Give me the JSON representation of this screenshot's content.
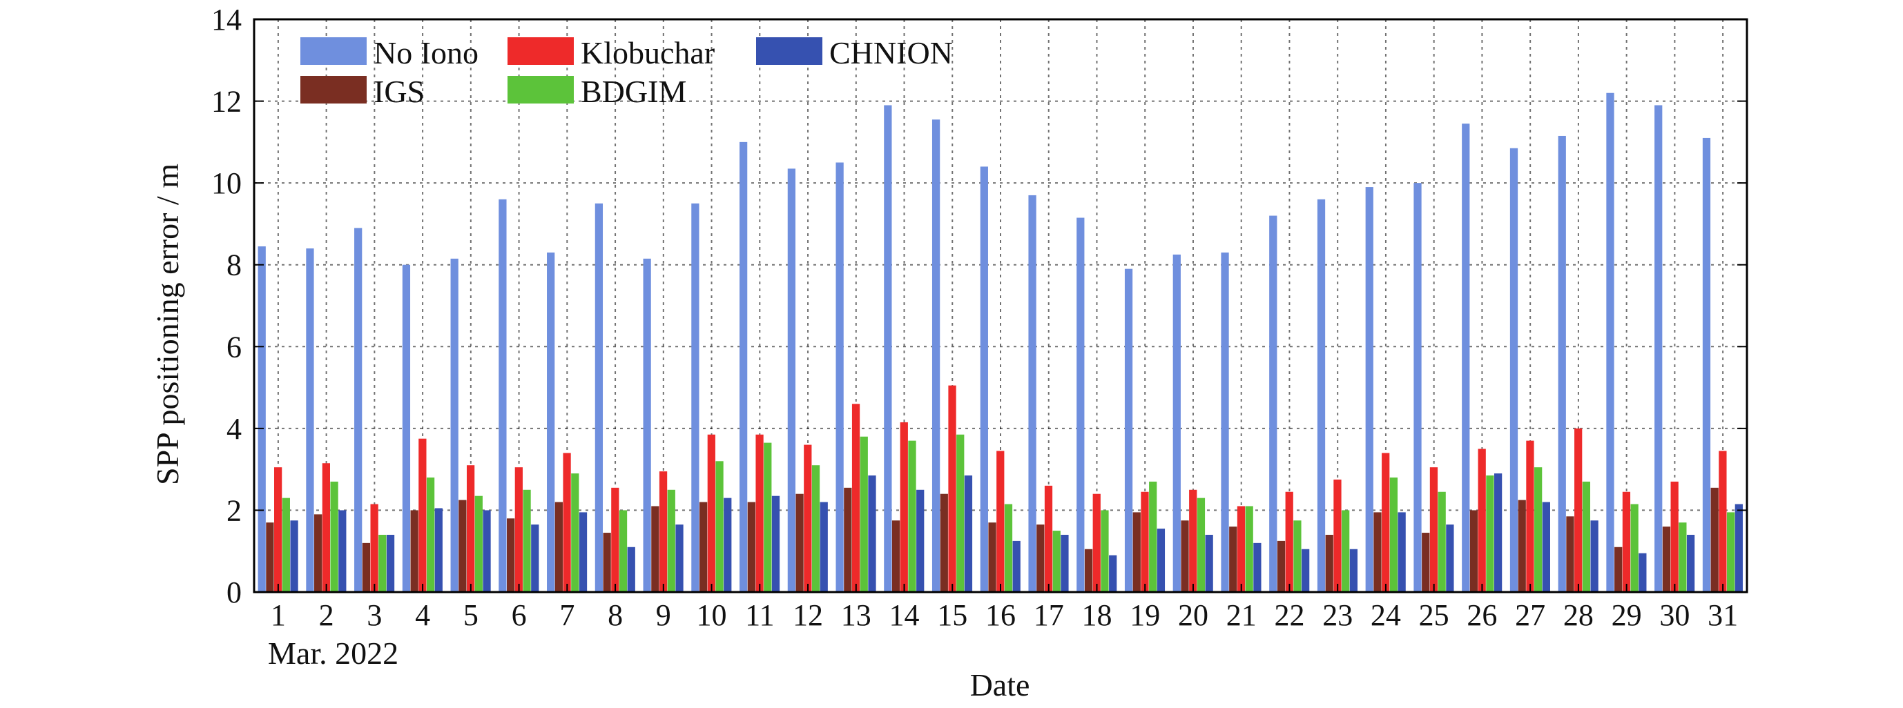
{
  "chart_data": {
    "type": "bar",
    "xlabel": "Date",
    "ylabel": "SPP positioning error / m",
    "x_sublabel": "Mar. 2022",
    "ylim": [
      0,
      14
    ],
    "yticks": [
      0,
      2,
      4,
      6,
      8,
      10,
      12,
      14
    ],
    "grid": true,
    "legend_position": "top-left",
    "categories": [
      "1",
      "2",
      "3",
      "4",
      "5",
      "6",
      "7",
      "8",
      "9",
      "10",
      "11",
      "12",
      "13",
      "14",
      "15",
      "16",
      "17",
      "18",
      "19",
      "20",
      "21",
      "22",
      "23",
      "24",
      "25",
      "26",
      "27",
      "28",
      "29",
      "30",
      "31"
    ],
    "series": [
      {
        "name": "No Iono",
        "color": "#6f8fde",
        "values": [
          8.45,
          8.4,
          8.9,
          8.0,
          8.15,
          9.6,
          8.3,
          9.5,
          8.15,
          9.5,
          11.0,
          10.35,
          10.5,
          11.9,
          11.55,
          10.4,
          9.7,
          9.15,
          7.9,
          8.25,
          8.3,
          9.2,
          9.6,
          9.9,
          10.0,
          11.45,
          10.85,
          11.15,
          12.2,
          11.9,
          11.1
        ]
      },
      {
        "name": "IGS",
        "color": "#7a2e22",
        "values": [
          1.7,
          1.9,
          1.2,
          2.0,
          2.25,
          1.8,
          2.2,
          1.45,
          2.1,
          2.2,
          2.2,
          2.4,
          2.55,
          1.75,
          2.4,
          1.7,
          1.65,
          1.05,
          1.95,
          1.75,
          1.6,
          1.25,
          1.4,
          1.95,
          1.45,
          2.0,
          2.25,
          1.85,
          1.1,
          1.6,
          2.55
        ]
      },
      {
        "name": "Klobuchar",
        "color": "#ee2a2a",
        "values": [
          3.05,
          3.15,
          2.15,
          3.75,
          3.1,
          3.05,
          3.4,
          2.55,
          2.95,
          3.85,
          3.85,
          3.6,
          4.6,
          4.15,
          5.05,
          3.45,
          2.6,
          2.4,
          2.45,
          2.5,
          2.1,
          2.45,
          2.75,
          3.4,
          3.05,
          3.5,
          3.7,
          4.0,
          2.45,
          2.7,
          3.45
        ]
      },
      {
        "name": "BDGIM",
        "color": "#5cc33a",
        "values": [
          2.3,
          2.7,
          1.4,
          2.8,
          2.35,
          2.5,
          2.9,
          2.0,
          2.5,
          3.2,
          3.65,
          3.1,
          3.8,
          3.7,
          3.85,
          2.15,
          1.5,
          2.0,
          2.7,
          2.3,
          2.1,
          1.75,
          2.0,
          2.8,
          2.45,
          2.85,
          3.05,
          2.7,
          2.15,
          1.7,
          1.95
        ]
      },
      {
        "name": "CHNION",
        "color": "#3651b0",
        "values": [
          1.75,
          2.0,
          1.4,
          2.05,
          2.0,
          1.65,
          1.95,
          1.1,
          1.65,
          2.3,
          2.35,
          2.2,
          2.85,
          2.5,
          2.85,
          1.25,
          1.4,
          0.9,
          1.55,
          1.4,
          1.2,
          1.05,
          1.05,
          1.95,
          1.65,
          2.9,
          2.2,
          1.75,
          0.95,
          1.4,
          2.15
        ]
      }
    ],
    "legend": {
      "row1": [
        "No Iono",
        "Klobuchar",
        "CHNION"
      ],
      "row2": [
        "IGS",
        "BDGIM"
      ]
    }
  }
}
